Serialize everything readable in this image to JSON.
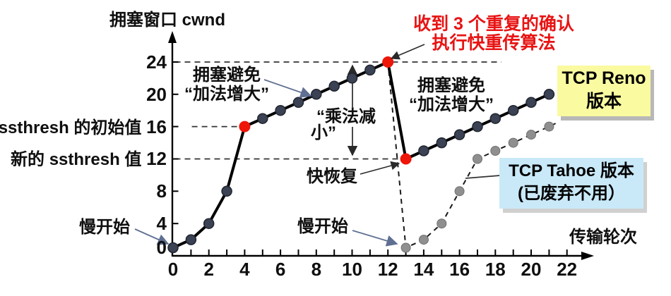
{
  "figure_title": "拥塞窗口 cwnd",
  "x_axis_label": "传输轮次",
  "chart_data": {
    "type": "line",
    "title": "拥塞窗口 cwnd",
    "xlabel": "传输轮次",
    "ylabel": "拥塞窗口 cwnd",
    "xlim": [
      0,
      23
    ],
    "ylim": [
      0,
      26
    ],
    "grid": false,
    "legend_position": "none",
    "x_ticks": [
      0,
      2,
      4,
      6,
      8,
      10,
      12,
      14,
      16,
      18,
      20,
      22
    ],
    "x_minor_tick_step": 1,
    "y_ticks": [
      0,
      4,
      8,
      12,
      16,
      20,
      24
    ],
    "series": [
      {
        "name": "TCP Reno",
        "style": "solid",
        "x": [
          0,
          1,
          2,
          3,
          4,
          5,
          6,
          7,
          8,
          9,
          10,
          11,
          12,
          13,
          14,
          15,
          16,
          17,
          18,
          19,
          20,
          21
        ],
        "y": [
          1,
          2,
          4,
          8,
          16,
          17,
          18,
          19,
          20,
          21,
          22,
          23,
          24,
          12,
          13,
          14,
          15,
          16,
          17,
          18,
          19,
          20
        ],
        "highlight_points": [
          [
            4,
            16
          ],
          [
            12,
            24
          ],
          [
            13,
            12
          ]
        ]
      },
      {
        "name": "TCP Tahoe",
        "style": "dashed",
        "x": [
          12,
          13,
          14,
          15,
          16,
          17,
          18,
          19,
          20,
          21
        ],
        "y": [
          24,
          1,
          2,
          4,
          8,
          12,
          13,
          14,
          15,
          16
        ]
      }
    ],
    "guide_lines": [
      {
        "y": 24,
        "from_x": 0.1,
        "to_x": 18.34
      },
      {
        "y": 16,
        "from_x": 1.05,
        "to_x": 3.85
      },
      {
        "y": 12,
        "from_x": 0.1,
        "to_x": 12.7
      }
    ]
  },
  "y_axis_rows": [
    {
      "prefix": "",
      "value": "24",
      "v": 24
    },
    {
      "prefix": "",
      "value": "20",
      "v": 20
    },
    {
      "prefix": "ssthresh 的初始值 ",
      "value": "16",
      "v": 16
    },
    {
      "prefix": "新的 ssthresh 值 ",
      "value": "12",
      "v": 12
    },
    {
      "prefix": "",
      "value": "8",
      "v": 8
    },
    {
      "prefix": "",
      "value": "4",
      "v": 4
    },
    {
      "prefix": "",
      "value": "0",
      "v": 0
    }
  ],
  "annotations": {
    "slow_start_1": "慢开始",
    "slow_start_2": "慢开始",
    "congestion_avoidance_1": {
      "line1": "拥塞避免",
      "line2": "“加法增大”"
    },
    "congestion_avoidance_2": {
      "line1": "拥塞避免",
      "line2": "“加法增大”"
    },
    "multiplicative_decrease": {
      "line1": "“乘法减",
      "line2": "小”"
    },
    "fast_recovery": "快恢复",
    "fast_retransmit": {
      "line1": "收到 3 个重复的确认",
      "line2": "执行快重传算法"
    }
  },
  "boxes": {
    "reno": {
      "line1": "TCP Reno",
      "line2": "版本"
    },
    "tahoe": {
      "line1": "TCP Tahoe 版本",
      "line2": "(已废弃不用）"
    }
  },
  "colors": {
    "axis": "#000000",
    "reno_line": "#000000",
    "reno_point": "#3a4254",
    "reno_point_edge": "#20242e",
    "tahoe_line": "#1a1a1a",
    "tahoe_point": "#8f8f8f",
    "tahoe_point_edge": "#6f6f6f",
    "highlight_red": "#ee1509",
    "red_text": "#e81414",
    "guide": "#333333",
    "arrow_blue_gray": "#5f6f92",
    "arrow_dark": "#2a2a2a",
    "reno_box_bg": "#fafaa0",
    "tahoe_box_bg": "#c9e9f8"
  }
}
